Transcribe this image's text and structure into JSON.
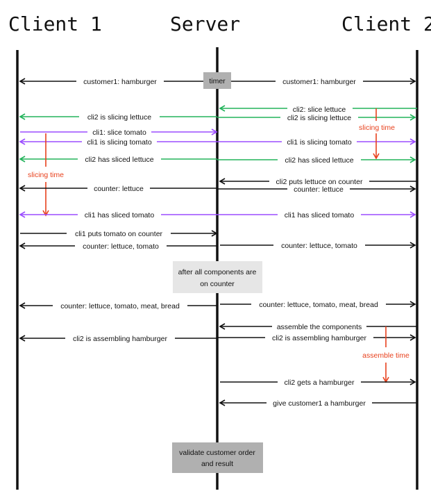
{
  "headers": {
    "client1": "Client 1",
    "server": "Server",
    "client2": "Client 2"
  },
  "boxes": {
    "timer": "timer",
    "after_line1": "after all components are",
    "after_line2": "on counter",
    "validate_line1": "validate customer order",
    "validate_line2": "and result"
  },
  "messages": {
    "m1_left": "customer1: hamburger",
    "m1_right": "customer1: hamburger",
    "m2_slice": "cli2: slice lettuce",
    "m3_right": "cli2 is slicing lettuce",
    "m3_left": "cli2 is slicing lettuce",
    "m4": "cli1: slice tomato",
    "m5_left": "cli1 is slicing tomato",
    "m5_right": "cli1 is slicing tomato",
    "m6_left": "cli2 has sliced lettuce",
    "m6_right": "cli2 has sliced lettuce",
    "m7": "cli2 puts lettuce on counter",
    "m8_left": "counter: lettuce",
    "m8_right": "counter: lettuce",
    "m9_left": "cli1 has sliced tomato",
    "m9_right": "cli1 has sliced tomato",
    "m10": "cli1 puts tomato on counter",
    "m11_left": "counter: lettuce, tomato",
    "m11_right": "counter: lettuce, tomato",
    "m12_left": "counter: lettuce, tomato, meat, bread",
    "m12_right": "counter: lettuce, tomato, meat, bread",
    "m13": "assemble the components",
    "m14_left": "cli2 is assembling hamburger",
    "m14_right": "cli2 is assembling hamburger",
    "m15": "cli2 gets a hamburger",
    "m16": "give customer1 a hamburger"
  },
  "notes": {
    "slicing_c2": "slicing time",
    "slicing_c1": "slicing time",
    "assemble": "assemble time"
  },
  "colors": {
    "black": "#111111",
    "green": "#22b35a",
    "purple": "#9b4dff",
    "red": "#e8401c",
    "timer_box": "#b0b0b0",
    "info_box": "#e6e6e6",
    "validate_box": "#b0b0b0"
  }
}
